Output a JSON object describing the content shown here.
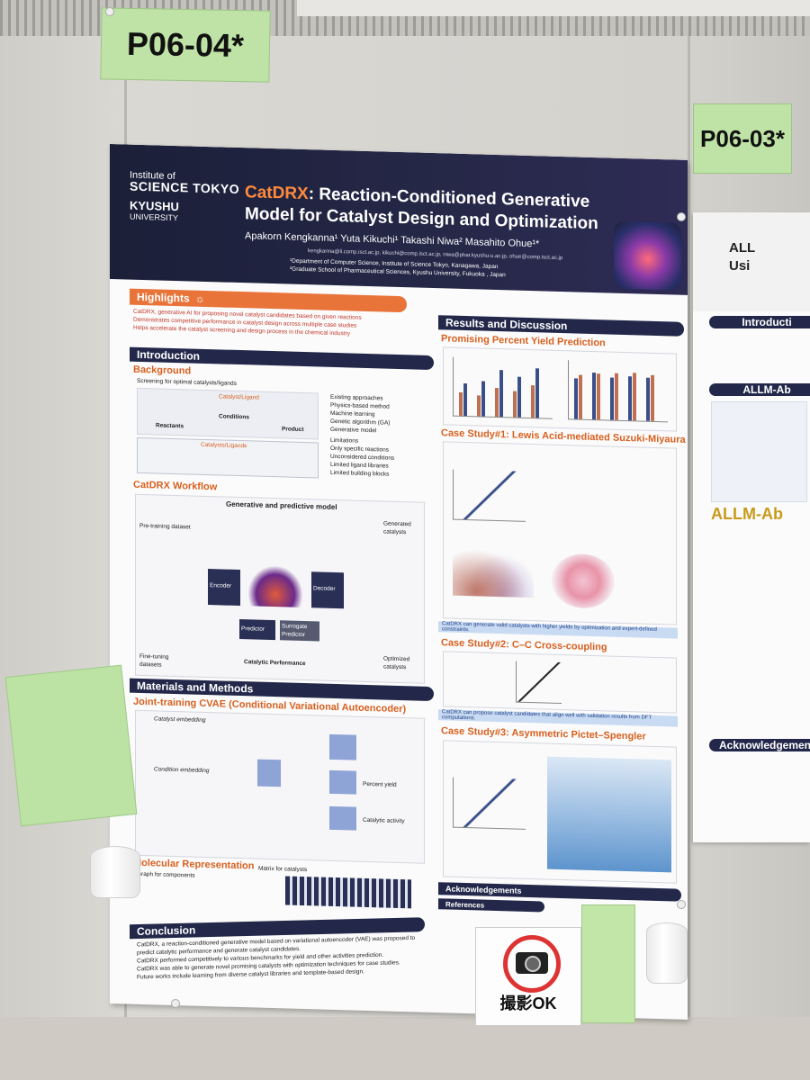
{
  "labels": {
    "left_board": "P06-04*",
    "right_board": "P06-03*"
  },
  "poster": {
    "logos": {
      "tokyo_small": "Institute of",
      "tokyo_main": "SCIENCE TOKYO",
      "kyushu_main": "KYUSHU",
      "kyushu_sub": "UNIVERSITY"
    },
    "title_highlight": "CatDRX",
    "title_rest": ": Reaction-Conditioned Generative Model for Catalyst Design and Optimization",
    "authors": "Apakorn Kengkanna¹    Yuta Kikuchi¹    Takashi Niwa²    Masahito Ohue¹*",
    "emails": "kengkanna@li.comp.isct.ac.jp, kikuchi@comp.isct.ac.jp, niwa@phar.kyushu-u.ac.jp, ohue@comp.isct.ac.jp",
    "affiliation1": "¹Department of Computer Science, Institute of Science Tokyo, Kanagawa, Japan",
    "affiliation2": "²Graduate School of Pharmaceutical Sciences, Kyushu University, Fukuoka , Japan",
    "highlights": {
      "heading": "Highlights",
      "items": [
        "CatDRX, generative AI for proposing novel catalyst candidates based on given reactions",
        "Demonstrates competitive performance in catalyst design across multiple case studies",
        "Helps accelerate the catalyst screening and design process in the chemical industry"
      ]
    },
    "introduction": {
      "heading": "Introduction",
      "background": "Background",
      "screening": "Screening for optimal catalysts/ligands",
      "reactants": "Reactants",
      "conditions": "Conditions",
      "product": "Product",
      "catalyst_ligand": "Catalyst/Ligand",
      "catalysts_ligands": "Catalysts/Ligands",
      "existing": "Existing approaches",
      "approaches": [
        "Physics-based method",
        "Machine learning",
        "Genetic algorithm (GA)",
        "Generative model"
      ],
      "limitations": "Limitations",
      "limits": [
        "Only specific reactions",
        "Unconsidered conditions",
        "Limited ligand libraries",
        "Limited building blocks"
      ]
    },
    "workflow": {
      "heading": "CatDRX Workflow",
      "subtitle": "Generative and predictive model",
      "pretraining": "Pre-training dataset",
      "finetuning": "Fine-tuning datasets",
      "encoder": "Encoder",
      "decoder": "Decoder",
      "predictor": "Predictor",
      "surrogate": "Surrogate Predictor",
      "performance": "Catalytic Performance",
      "generated": "Generated catalysts",
      "optimized": "Optimized catalysts"
    },
    "methods": {
      "heading": "Materials and Methods",
      "joint": "Joint-training CVAE (Conditional Variational Autoencoder)",
      "catalyst_embedding": "Catalyst embedding",
      "condition_embedding": "Condition embedding",
      "percent_yield": "Percent yield",
      "catalytic_activity": "Catalytic activity",
      "mol_rep": "Molecular Representation",
      "graph": "Graph for components",
      "matrix": "Matrix for catalysts"
    },
    "conclusion": {
      "heading": "Conclusion",
      "items": [
        "CatDRX, a reaction-conditioned generative model based on variational autoencoder (VAE) was proposed to predict catalytic performance and generate catalyst candidates.",
        "CatDRX performed competitively to various benchmarks for yield and other activities prediction.",
        "CatDRX was able to generate novel promising catalysts with optimization techniques for case studies.",
        "Future works include learning from diverse catalyst libraries and template-based design."
      ]
    },
    "results": {
      "heading": "Results and Discussion",
      "yield": "Promising Percent Yield Prediction",
      "case1": "Case Study#1: Lewis Acid-mediated Suzuki-Miyaura",
      "case1_note": "CatDRX can generate valid catalysts with higher yields by optimization and expert-defined constraints.",
      "case2": "Case Study#2: C–C Cross-coupling",
      "case2_note": "CatDRX can propose catalyst candidates that align well with validation results from DFT computations.",
      "case3": "Case Study#3: Asymmetric Pictet–Spengler",
      "acknowledgements": "Acknowledgements",
      "references": "References"
    }
  },
  "right_poster": {
    "title_line1": "ALL",
    "title_line2": "Usi",
    "intro": "Introducti",
    "section": "ALLM-Ab",
    "brand": "ALLM-Ab",
    "ack": "Acknowledgement"
  },
  "sign": {
    "text": "撮影OK"
  }
}
